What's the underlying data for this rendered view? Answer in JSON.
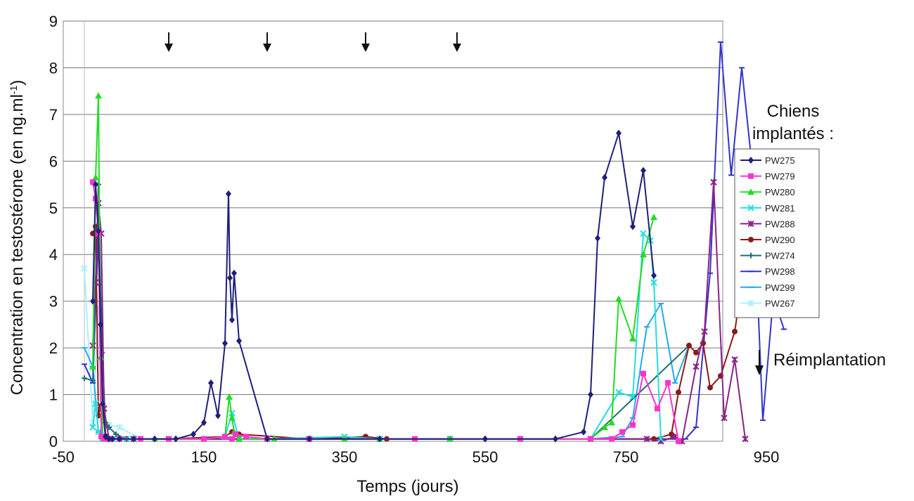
{
  "chart_data": {
    "type": "line",
    "xlabel": "Temps (jours)",
    "ylabel_main": "Concentration en testostérone (en ng.ml",
    "ylabel_sup": "-1",
    "ylabel_end": ")",
    "xlim": [
      -50,
      1050
    ],
    "ylim": [
      0,
      9
    ],
    "xticks": [
      -50,
      150,
      350,
      550,
      750,
      950
    ],
    "yticks": [
      0,
      1,
      2,
      3,
      4,
      5,
      6,
      7,
      8,
      9
    ],
    "grid": "horizontal",
    "legend_title_line1": "Chiens",
    "legend_title_line2": "implantés :",
    "legend_position": "right",
    "reimplantation_label": "Réimplantation",
    "reimplantation_days": [
      100,
      240,
      380,
      510
    ],
    "series": [
      {
        "name": "PW275",
        "color": "#1f1f7a",
        "marker": "diamond",
        "x": [
          -8,
          -4,
          0,
          3,
          6,
          10,
          15,
          20,
          30,
          50,
          80,
          110,
          135,
          150,
          160,
          170,
          180,
          185,
          187,
          190,
          193,
          200,
          240,
          300,
          400,
          550,
          650,
          690,
          700,
          710,
          720,
          740,
          760,
          775,
          790
        ],
        "y": [
          3,
          5.5,
          4.5,
          2.5,
          0.8,
          0.1,
          0.05,
          0.05,
          0.05,
          0.05,
          0.05,
          0.05,
          0.15,
          0.4,
          1.25,
          0.55,
          2.1,
          5.3,
          3.5,
          2.6,
          3.6,
          2.15,
          0.05,
          0.05,
          0.05,
          0.05,
          0.05,
          0.2,
          1.0,
          4.35,
          5.65,
          6.6,
          4.6,
          5.8,
          3.55
        ]
      },
      {
        "name": "PW279",
        "color": "#ff33cc",
        "marker": "square",
        "x": [
          -8,
          -4,
          0,
          4,
          8,
          15,
          30,
          60,
          100,
          150,
          180,
          190,
          195,
          210,
          240,
          300,
          450,
          600,
          700,
          730,
          745,
          760,
          775,
          795,
          810,
          825
        ],
        "y": [
          5.55,
          5.2,
          4.45,
          0.1,
          0.05,
          0.05,
          0.05,
          0.05,
          0.05,
          0.05,
          0.1,
          0.05,
          0.15,
          0.1,
          0.05,
          0.05,
          0.05,
          0.05,
          0.05,
          0.05,
          0.2,
          0.35,
          1.45,
          0.7,
          1.25,
          0
        ]
      },
      {
        "name": "PW280",
        "color": "#22dd22",
        "marker": "triangle",
        "x": [
          -8,
          -4,
          0,
          3,
          6,
          10,
          30,
          80,
          150,
          180,
          186,
          190,
          193,
          200,
          250,
          350,
          400,
          500,
          600,
          700,
          720,
          730,
          740,
          760,
          775,
          790
        ],
        "y": [
          1.6,
          5.65,
          7.4,
          1.8,
          0.1,
          0.05,
          0.05,
          0.05,
          0.05,
          0.1,
          0.95,
          0.5,
          0.2,
          0.05,
          0.05,
          0.05,
          0.05,
          0.05,
          0.05,
          0.05,
          0.3,
          0.4,
          3.05,
          2.2,
          4,
          4.8
        ]
      },
      {
        "name": "PW281",
        "color": "#22dddd",
        "marker": "x",
        "x": [
          -8,
          -4,
          0,
          5,
          10,
          20,
          40,
          100,
          150,
          180,
          190,
          200,
          240,
          350,
          400,
          500,
          600,
          700,
          740,
          760,
          775,
          785,
          790,
          800
        ],
        "y": [
          0.3,
          0.8,
          0.2,
          0.05,
          0.05,
          0.05,
          0.05,
          0.05,
          0.05,
          0.1,
          0.6,
          0.05,
          0.05,
          0.1,
          0.05,
          0.05,
          0.05,
          0.05,
          1.05,
          0.95,
          4.45,
          4.3,
          3.4,
          0.05
        ]
      },
      {
        "name": "PW288",
        "color": "#882288",
        "marker": "star",
        "x": [
          -8,
          -4,
          0,
          4,
          8,
          15,
          50,
          100,
          200,
          300,
          400,
          500,
          600,
          700,
          780,
          800,
          820,
          830,
          850,
          862,
          875,
          890,
          905,
          920
        ],
        "y": [
          2.05,
          3.4,
          5.1,
          4.45,
          0.7,
          0.05,
          0.05,
          0.05,
          0.05,
          0.05,
          0.05,
          0.05,
          0.05,
          0.05,
          0.05,
          0,
          0.1,
          0,
          1.6,
          2.35,
          5.55,
          0.5,
          1.75,
          0.05
        ]
      },
      {
        "name": "PW290",
        "color": "#8b1a1a",
        "marker": "circle",
        "x": [
          -8,
          -4,
          0,
          3,
          6,
          10,
          15,
          20,
          40,
          100,
          180,
          190,
          200,
          300,
          380,
          410,
          500,
          600,
          700,
          790,
          815,
          825,
          840,
          850,
          860,
          870,
          885,
          905,
          920
        ],
        "y": [
          4.45,
          4.6,
          0.55,
          0.75,
          0.7,
          0.1,
          0.05,
          0.05,
          0.05,
          0.05,
          0.1,
          0.2,
          0.15,
          0.05,
          0.1,
          0.05,
          0.05,
          0.05,
          0.05,
          0.05,
          0.15,
          1.05,
          2.05,
          1.9,
          2.1,
          1.15,
          1.4,
          2.35,
          3.85
        ]
      },
      {
        "name": "PW274",
        "color": "#1f6f6f",
        "marker": "plus",
        "x": [
          -20,
          -8,
          0,
          5,
          10,
          15,
          25,
          40,
          100,
          200,
          300,
          500,
          700,
          840
        ],
        "y": [
          1.35,
          1.3,
          5.5,
          1.9,
          0.4,
          0.3,
          0.15,
          0.05,
          0.05,
          0.05,
          0.05,
          0.05,
          0.05,
          2.05
        ]
      },
      {
        "name": "PW298",
        "color": "#3333cc",
        "marker": "dash",
        "x": [
          -20,
          -8,
          0,
          10,
          20,
          100,
          200,
          400,
          600,
          700,
          820,
          835,
          850,
          870,
          885,
          900,
          915,
          930,
          945,
          960,
          975
        ],
        "y": [
          1.65,
          1.25,
          4.5,
          0.15,
          0.05,
          0.05,
          0.05,
          0.05,
          0.05,
          0.05,
          0.05,
          0.05,
          0.3,
          3.6,
          8.55,
          5.7,
          8.0,
          5.85,
          0.45,
          3.1,
          2.4
        ]
      },
      {
        "name": "PW299",
        "color": "#22aaee",
        "marker": "dash",
        "x": [
          -20,
          -8,
          0,
          10,
          30,
          100,
          200,
          400,
          600,
          700,
          745,
          760,
          780,
          800,
          820,
          840
        ],
        "y": [
          2.0,
          1.6,
          0.2,
          0.1,
          0.05,
          0.05,
          0.05,
          0.05,
          0.05,
          0.05,
          0.1,
          0.5,
          2.45,
          2.95,
          1.25,
          2.05
        ]
      },
      {
        "name": "PW267",
        "color": "#aaeeff",
        "marker": "star",
        "x": [
          -20,
          -8,
          0,
          5,
          15,
          30,
          60,
          100,
          200,
          400,
          600,
          700
        ],
        "y": [
          3.7,
          0.4,
          2.85,
          0.5,
          0.35,
          0.3,
          0.05,
          0.05,
          0.05,
          0.05,
          0.05,
          0.05
        ]
      }
    ]
  }
}
